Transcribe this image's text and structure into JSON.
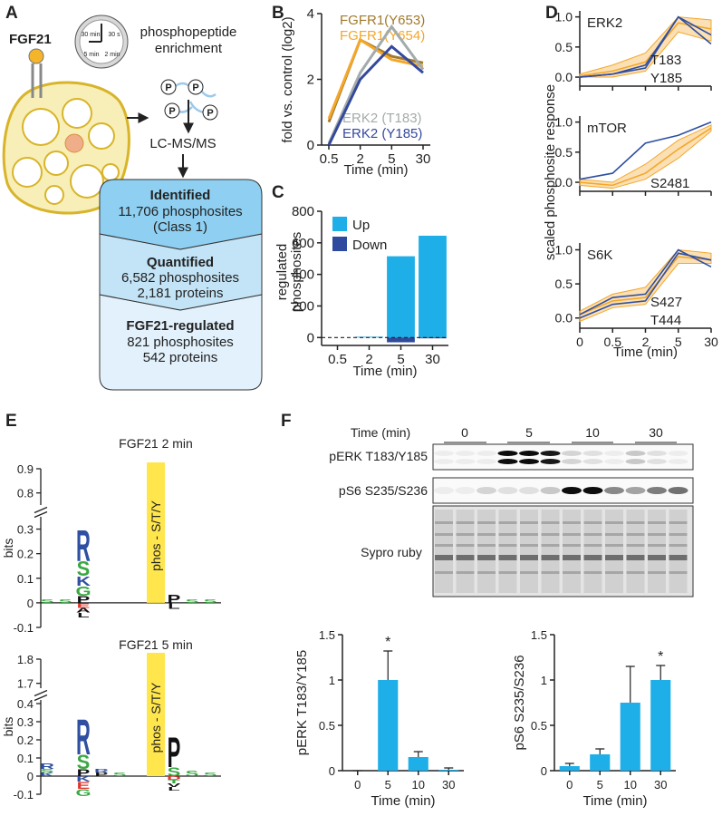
{
  "panel_labels": [
    "A",
    "B",
    "C",
    "D",
    "E",
    "F"
  ],
  "workflow": {
    "ligand": "FGF21",
    "clock": [
      "30 min",
      "30 s",
      "5 min",
      "2 min"
    ],
    "enrichment": [
      "phosphopeptide",
      "enrichment"
    ],
    "phospho": "P",
    "ms": "LC-MS/MS",
    "funnel": [
      {
        "title": "Identified",
        "lines": [
          "11,706 phosphosites",
          "(Class 1)"
        ]
      },
      {
        "title": "Quantified",
        "lines": [
          "6,582 phosphosites",
          "2,181 proteins"
        ]
      },
      {
        "title": "FGF21-regulated",
        "lines": [
          "821 phosphosites",
          "542 proteins"
        ]
      }
    ]
  },
  "blot": {
    "time_label": "Time (min)",
    "times": [
      "0",
      "5",
      "10",
      "30"
    ],
    "rows": [
      "pERK T183/Y185",
      "pS6 S235/S236",
      "Sypro ruby"
    ]
  },
  "chart_data": [
    {
      "type": "line",
      "xlabel": "Time (min)",
      "ylabel": "fold vs. control (log2)",
      "categories": [
        "0.5",
        "2",
        "5",
        "30"
      ],
      "ylim": [
        0,
        4
      ],
      "yticks": [
        0,
        2,
        4
      ],
      "legend": "inline",
      "series": [
        {
          "name": "FGFR1(Y653)",
          "color": "#a27a2c",
          "values": [
            0.7,
            3.2,
            2.7,
            2.5
          ]
        },
        {
          "name": "FGFR1(Y654)",
          "color": "#f4a72a",
          "values": [
            0.8,
            3.2,
            2.6,
            2.4
          ]
        },
        {
          "name": "ERK2 (T183)",
          "color": "#a3abab",
          "values": [
            0.05,
            2.2,
            3.6,
            2.3
          ]
        },
        {
          "name": "ERK2 (Y185)",
          "color": "#34499c",
          "values": [
            0,
            2,
            3,
            2.2
          ]
        }
      ]
    },
    {
      "type": "bar",
      "xlabel": "Time (min)",
      "ylabel": [
        "regulated",
        "phosphosites"
      ],
      "categories": [
        "0.5",
        "2",
        "5",
        "30"
      ],
      "ylim": [
        -50,
        800
      ],
      "yticks": [
        0,
        200,
        400,
        600,
        800
      ],
      "zero_line": true,
      "legend": "upper left",
      "series": [
        {
          "name": "Up",
          "color": "#1eaee8",
          "values": [
            0,
            5,
            515,
            645
          ]
        },
        {
          "name": "Down",
          "color": "#2e4a9e",
          "values": [
            0,
            0,
            -30,
            -5
          ]
        }
      ]
    },
    {
      "type": "band",
      "title": "ERK2",
      "annotations": [
        "T183",
        "Y185"
      ],
      "ylabel": "scaled phosphosite response",
      "ylim": [
        -0.15,
        1.1
      ],
      "yticks": [
        {
          "value": 0,
          "label": "0.0"
        },
        {
          "value": 0.5,
          "label": "0.5"
        },
        {
          "value": 1,
          "label": "1.0"
        }
      ],
      "band": {
        "color": "#f4a72a",
        "lower": [
          0,
          0,
          0.1,
          0.75,
          0.6
        ],
        "upper": [
          0.05,
          0.2,
          0.4,
          1,
          0.95
        ]
      },
      "series": [
        {
          "color": "#f4a72a",
          "values": [
            0.02,
            0.1,
            0.25,
            0.9,
            0.8
          ]
        },
        {
          "color": "#2f4fa2",
          "values": [
            0,
            0.05,
            0.2,
            1,
            0.55
          ]
        },
        {
          "color": "#2f4fa2",
          "values": [
            0,
            0.05,
            0.15,
            1,
            0.7
          ]
        }
      ]
    },
    {
      "type": "band",
      "title": "mTOR",
      "annotations": [
        "S2481"
      ],
      "ylim": [
        -0.15,
        1.1
      ],
      "yticks": [
        {
          "value": 0,
          "label": "0.0"
        },
        {
          "value": 0.5,
          "label": "0.5"
        },
        {
          "value": 1,
          "label": "1.0"
        }
      ],
      "band": {
        "color": "#f4a72a",
        "lower": [
          -0.05,
          -0.1,
          0.05,
          0.4,
          0.85
        ],
        "upper": [
          0.05,
          0,
          0.3,
          0.7,
          0.95
        ]
      },
      "series": [
        {
          "color": "#f4a72a",
          "values": [
            0,
            -0.05,
            0.15,
            0.55,
            0.9
          ]
        },
        {
          "color": "#2f4fa2",
          "values": [
            0.05,
            0.15,
            0.65,
            0.78,
            1
          ]
        }
      ]
    },
    {
      "type": "band",
      "title": "S6K",
      "annotations": [
        "S427",
        "T444"
      ],
      "xlabel": "Time (min)",
      "categories": [
        "0",
        "0.5",
        "2",
        "5",
        "30"
      ],
      "ylim": [
        -0.15,
        1.1
      ],
      "yticks": [
        {
          "value": 0,
          "label": "0.0"
        },
        {
          "value": 0.5,
          "label": "0.5"
        },
        {
          "value": 1,
          "label": "1.0"
        }
      ],
      "band": {
        "color": "#f4a72a",
        "lower": [
          -0.05,
          0.15,
          0.2,
          0.8,
          0.8
        ],
        "upper": [
          0.1,
          0.35,
          0.45,
          1,
          0.95
        ]
      },
      "series": [
        {
          "color": "#f4a72a",
          "values": [
            0.05,
            0.25,
            0.3,
            0.9,
            0.85
          ]
        },
        {
          "color": "#2f4fa2",
          "values": [
            0.05,
            0.3,
            0.35,
            1,
            0.75
          ]
        },
        {
          "color": "#2f4fa2",
          "values": [
            0,
            0.2,
            0.25,
            0.95,
            0.85
          ]
        }
      ]
    },
    {
      "type": "logo",
      "title": "FGF21 2 min",
      "ylabel": "bits",
      "ylim": [
        -0.1,
        0.9
      ],
      "ybreak": [
        0.35,
        0.75
      ],
      "yticks": [
        -0.1,
        0,
        0.1,
        0.2,
        0.3,
        0.8,
        0.9
      ],
      "columns": [
        {
          "letters": [
            {
              "letter": "S",
              "bits": 0.015,
              "color": "#3aa843"
            }
          ]
        },
        {
          "letters": [
            {
              "letter": "S",
              "bits": 0.015,
              "color": "#3aa843"
            }
          ]
        },
        {
          "letters": [
            {
              "letter": "P",
              "bits": 0.03,
              "color": "#111111"
            },
            {
              "letter": "G",
              "bits": 0.04,
              "color": "#3aa843"
            },
            {
              "letter": "K",
              "bits": 0.04,
              "color": "#2f4fa2"
            },
            {
              "letter": "S",
              "bits": 0.06,
              "color": "#3aa843"
            },
            {
              "letter": "R",
              "bits": 0.13,
              "color": "#2f4fa2"
            },
            {
              "letter": "E",
              "bits": -0.02,
              "color": "#e0342c"
            },
            {
              "letter": "A",
              "bits": -0.02,
              "color": "#111111"
            },
            {
              "letter": "L",
              "bits": -0.02,
              "color": "#111111"
            }
          ]
        },
        {
          "letters": []
        },
        {
          "letters": []
        },
        {
          "letters": []
        },
        {
          "letters": [],
          "label": "phos - S/T/Y"
        },
        {
          "letters": [
            {
              "letter": "P",
              "bits": 0.035,
              "color": "#111111"
            },
            {
              "letter": "L",
              "bits": -0.025,
              "color": "#111111"
            }
          ]
        },
        {
          "letters": [
            {
              "letter": "S",
              "bits": 0.015,
              "color": "#3aa843"
            }
          ]
        },
        {
          "letters": [
            {
              "letter": "S",
              "bits": 0.015,
              "color": "#3aa843"
            }
          ]
        }
      ]
    },
    {
      "type": "logo",
      "title": "FGF21 5 min",
      "ylabel": "bits",
      "ylim": [
        -0.1,
        1.8
      ],
      "ybreak": [
        0.42,
        1.68
      ],
      "yticks": [
        -0.1,
        0,
        0.1,
        0.2,
        0.3,
        0.4,
        1.7,
        1.8
      ],
      "columns": [
        {
          "letters": [
            {
              "letter": "K",
              "bits": 0.02,
              "color": "#2f4fa2"
            },
            {
              "letter": "S",
              "bits": 0.02,
              "color": "#3aa843"
            },
            {
              "letter": "R",
              "bits": 0.03,
              "color": "#2f4fa2"
            }
          ]
        },
        {
          "letters": []
        },
        {
          "letters": [
            {
              "letter": "P",
              "bits": 0.04,
              "color": "#111111"
            },
            {
              "letter": "S",
              "bits": 0.08,
              "color": "#3aa843"
            },
            {
              "letter": "R",
              "bits": 0.2,
              "color": "#2f4fa2"
            },
            {
              "letter": "K",
              "bits": -0.03,
              "color": "#2f4fa2"
            },
            {
              "letter": "E",
              "bits": -0.04,
              "color": "#e0342c"
            },
            {
              "letter": "G",
              "bits": -0.04,
              "color": "#3aa843"
            }
          ]
        },
        {
          "letters": [
            {
              "letter": "P",
              "bits": 0.02,
              "color": "#111111"
            },
            {
              "letter": "R",
              "bits": 0.02,
              "color": "#2f4fa2"
            }
          ]
        },
        {
          "letters": [
            {
              "letter": "S",
              "bits": 0.02,
              "color": "#3aa843"
            }
          ]
        },
        {
          "letters": []
        },
        {
          "letters": [],
          "label": "phos - S/T/Y"
        },
        {
          "letters": [
            {
              "letter": "S",
              "bits": 0.05,
              "color": "#3aa843"
            },
            {
              "letter": "P",
              "bits": 0.17,
              "color": "#111111"
            },
            {
              "letter": "D",
              "bits": -0.02,
              "color": "#e0342c"
            },
            {
              "letter": "T",
              "bits": -0.02,
              "color": "#3aa843"
            },
            {
              "letter": "V",
              "bits": -0.02,
              "color": "#111111"
            },
            {
              "letter": "L",
              "bits": -0.02,
              "color": "#111111"
            }
          ]
        },
        {
          "letters": [
            {
              "letter": "S",
              "bits": 0.03,
              "color": "#3aa843"
            }
          ]
        },
        {
          "letters": [
            {
              "letter": "S",
              "bits": 0.02,
              "color": "#3aa843"
            }
          ]
        }
      ]
    },
    {
      "type": "bar",
      "xlabel": "Time (min)",
      "ylabel": "pERK T183/Y185",
      "categories": [
        "0",
        "5",
        "10",
        "30"
      ],
      "values": [
        0,
        1,
        0.15,
        0.01
      ],
      "errors": [
        0,
        0.32,
        0.06,
        0.02
      ],
      "annotations": [
        null,
        "*",
        null,
        null
      ],
      "color": "#1eaee8",
      "ylim": [
        0,
        1.5
      ],
      "yticks": [
        0,
        0.5,
        1,
        1.5
      ]
    },
    {
      "type": "bar",
      "xlabel": "Time (min)",
      "ylabel": "pS6 S235/S236",
      "categories": [
        "0",
        "5",
        "10",
        "30"
      ],
      "values": [
        0.05,
        0.18,
        0.75,
        1
      ],
      "errors": [
        0.03,
        0.06,
        0.4,
        0.16
      ],
      "annotations": [
        null,
        null,
        null,
        "*"
      ],
      "color": "#1eaee8",
      "ylim": [
        0,
        1.5
      ],
      "yticks": [
        0,
        0.5,
        1,
        1.5
      ]
    }
  ]
}
